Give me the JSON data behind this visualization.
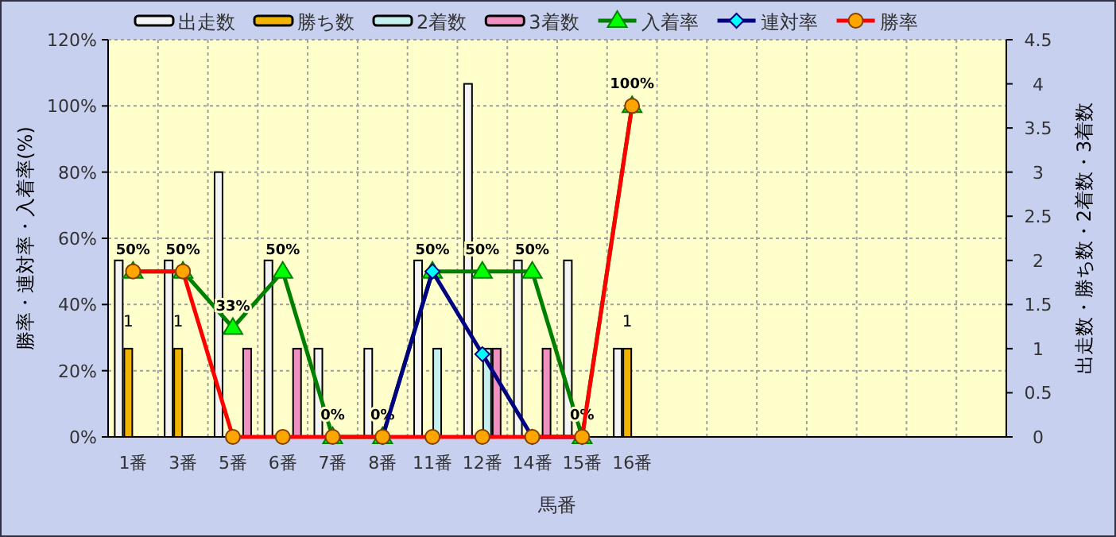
{
  "chart_data": {
    "type": "bar",
    "xlabel": "馬番",
    "ylabel": "勝率・連対率・入着率(%)",
    "y2label": "出走数・勝ち数・2着数・3着数",
    "categories": [
      "1番",
      "3番",
      "5番",
      "6番",
      "7番",
      "8番",
      "11番",
      "12番",
      "14番",
      "15番",
      "16番",
      null,
      null,
      null,
      null,
      null,
      null,
      null
    ],
    "series": [
      {
        "name": "出走数",
        "axis": "y2",
        "color": "#f4f4f4",
        "values": [
          2,
          2,
          3,
          2,
          1,
          1,
          2,
          4,
          2,
          2,
          1,
          null,
          null,
          null,
          null,
          null,
          null,
          null
        ]
      },
      {
        "name": "勝ち数",
        "axis": "y2",
        "color": "#f0b400",
        "values": [
          1,
          1,
          0,
          0,
          0,
          0,
          0,
          0,
          0,
          0,
          1,
          null,
          null,
          null,
          null,
          null,
          null,
          null
        ],
        "value_labels": [
          "1",
          "1",
          null,
          null,
          null,
          null,
          null,
          null,
          null,
          null,
          "1",
          null,
          null,
          null,
          null,
          null,
          null,
          null
        ]
      },
      {
        "name": "2着数",
        "axis": "y2",
        "color": "#c4f0f0",
        "values": [
          0,
          0,
          0,
          0,
          0,
          0,
          1,
          1,
          0,
          0,
          0,
          null,
          null,
          null,
          null,
          null,
          null,
          null
        ]
      },
      {
        "name": "3着数",
        "axis": "y2",
        "color": "#f090c0",
        "values": [
          0,
          0,
          1,
          1,
          0,
          0,
          0,
          1,
          1,
          0,
          0,
          null,
          null,
          null,
          null,
          null,
          null,
          null
        ]
      },
      {
        "name": "入着率",
        "type": "line",
        "marker": "triangle",
        "color": "#008000",
        "values": [
          50,
          50,
          33,
          50,
          0,
          0,
          50,
          50,
          50,
          0,
          100,
          null,
          null,
          null,
          null,
          null,
          null,
          null
        ],
        "value_labels": [
          "50%",
          "50%",
          "33%",
          "50%",
          "0%",
          "0%",
          "50%",
          "50%",
          "50%",
          "0%",
          "100%",
          null,
          null,
          null,
          null,
          null,
          null,
          null
        ]
      },
      {
        "name": "連対率",
        "type": "line",
        "marker": "diamond",
        "color": "#000080",
        "values": [
          null,
          null,
          null,
          null,
          null,
          0,
          50,
          25,
          0,
          0,
          null,
          null,
          null,
          null,
          null,
          null,
          null,
          null
        ]
      },
      {
        "name": "勝率",
        "type": "line",
        "marker": "circle",
        "color": "#ff0000",
        "values": [
          50,
          50,
          0,
          0,
          0,
          0,
          0,
          0,
          0,
          0,
          100,
          null,
          null,
          null,
          null,
          null,
          null,
          null
        ]
      }
    ],
    "ylim": [
      0,
      120
    ],
    "yticks": [
      {
        "value": 0,
        "label": "0%"
      },
      {
        "value": 20,
        "label": "20%"
      },
      {
        "value": 40,
        "label": "40%"
      },
      {
        "value": 60,
        "label": "60%"
      },
      {
        "value": 80,
        "label": "80%"
      },
      {
        "value": 100,
        "label": "100%"
      },
      {
        "value": 120,
        "label": "120%"
      }
    ],
    "y2lim": [
      0,
      4.5
    ],
    "y2ticks": [
      0,
      0.5,
      1,
      1.5,
      2,
      2.5,
      3,
      3.5,
      4,
      4.5
    ],
    "grid": true,
    "legend": "top"
  }
}
